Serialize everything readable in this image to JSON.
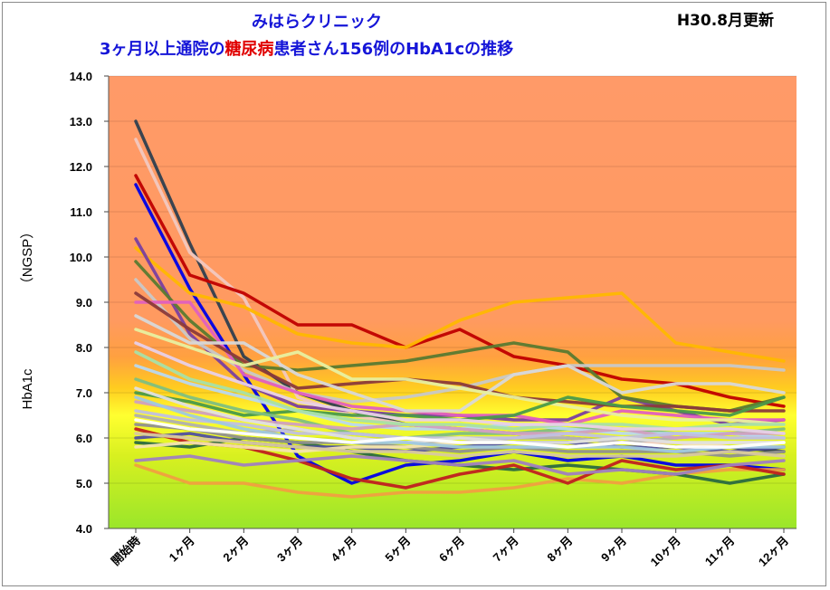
{
  "title": "みはらクリニック",
  "subtitle_parts": [
    "3ヶ月以上通院の",
    "糖尿病",
    "患者さん156例のHbA1cの推移"
  ],
  "update_label": "H30.8月更新",
  "colors": {
    "title": "#1515d8",
    "highlight": "#e00000"
  },
  "chart_data": {
    "type": "line",
    "title": "3ヶ月以上通院の糖尿病患者さん156例のHbA1cの推移",
    "ylabel": "HbA1c (NGSP)",
    "ylabel_parts": [
      "HbA1c",
      "（NGSP）"
    ],
    "ylim": [
      4.0,
      14.0
    ],
    "yticks": [
      "4.0",
      "5.0",
      "6.0",
      "7.0",
      "8.0",
      "9.0",
      "10.0",
      "11.0",
      "12.0",
      "13.0",
      "14.0"
    ],
    "categories": [
      "開始時",
      "1ヶ月",
      "2ヶ月",
      "3ヶ月",
      "4ヶ月",
      "5ヶ月",
      "6ヶ月",
      "7ヶ月",
      "8ヶ月",
      "9ヶ月",
      "10ヶ月",
      "11ヶ月",
      "12ヶ月"
    ],
    "background": "gradient: green (4.0) → yellow (6.5) → orange (8.0) → salmon (14.0)",
    "series": [
      {
        "color": "#2f3f4f",
        "values": [
          13.0,
          10.3,
          7.8,
          7.0,
          6.6,
          6.3,
          6.2,
          6.1,
          6.0,
          5.9,
          5.8,
          5.8,
          5.7
        ]
      },
      {
        "color": "#f2c8c0",
        "values": [
          12.6,
          10.1,
          9.1,
          6.9,
          6.5,
          6.3,
          6.2,
          6.1,
          6.0,
          5.9,
          5.9,
          5.8,
          5.8
        ]
      },
      {
        "color": "#c00000",
        "values": [
          11.8,
          9.6,
          9.2,
          8.5,
          8.5,
          8.0,
          8.4,
          7.8,
          7.6,
          7.3,
          7.2,
          6.9,
          6.7
        ]
      },
      {
        "color": "#0000e8",
        "values": [
          11.6,
          9.3,
          7.4,
          5.6,
          5.0,
          5.4,
          5.5,
          5.7,
          5.5,
          5.6,
          5.4,
          5.4,
          5.3
        ]
      },
      {
        "color": "#ffb800",
        "values": [
          10.2,
          9.2,
          8.9,
          8.3,
          8.1,
          8.0,
          8.6,
          9.0,
          9.1,
          9.2,
          8.1,
          7.9,
          7.7
        ]
      },
      {
        "color": "#7a3fa0",
        "values": [
          10.4,
          8.3,
          7.2,
          6.7,
          6.6,
          6.5,
          6.5,
          6.4,
          6.4,
          6.9,
          6.6,
          6.3,
          6.4
        ]
      },
      {
        "color": "#5a7a30",
        "values": [
          9.9,
          8.6,
          7.6,
          7.5,
          7.6,
          7.7,
          7.9,
          8.1,
          7.9,
          6.9,
          6.7,
          6.6,
          6.9
        ]
      },
      {
        "color": "#c8c8c8",
        "values": [
          9.5,
          8.2,
          7.5,
          7.0,
          6.8,
          6.9,
          7.1,
          7.4,
          7.6,
          7.6,
          7.6,
          7.6,
          7.5
        ]
      },
      {
        "color": "#e060c0",
        "values": [
          9.0,
          9.0,
          7.4,
          7.0,
          6.7,
          6.6,
          6.5,
          6.5,
          6.3,
          6.6,
          6.5,
          6.4,
          6.4
        ]
      },
      {
        "color": "#8b3a3a",
        "values": [
          9.2,
          8.4,
          7.7,
          7.1,
          7.2,
          7.3,
          7.2,
          6.9,
          6.8,
          6.7,
          6.7,
          6.6,
          6.6
        ]
      },
      {
        "color": "#d8d8d8",
        "values": [
          8.7,
          8.1,
          8.1,
          7.4,
          7.0,
          6.6,
          6.6,
          7.4,
          7.6,
          7.0,
          7.2,
          7.2,
          7.0
        ]
      },
      {
        "color": "#e8f0a0",
        "values": [
          8.4,
          8.0,
          7.6,
          7.9,
          7.3,
          7.3,
          7.1,
          6.9,
          6.7,
          6.5,
          6.4,
          6.4,
          6.3
        ]
      },
      {
        "color": "#f0a040",
        "values": [
          5.4,
          5.0,
          5.0,
          4.8,
          4.7,
          4.8,
          4.8,
          4.9,
          5.1,
          5.0,
          5.2,
          5.3,
          5.3
        ]
      },
      {
        "color": "#2a6a40",
        "values": [
          5.9,
          5.8,
          6.0,
          5.9,
          5.7,
          5.5,
          5.4,
          5.3,
          5.4,
          5.3,
          5.2,
          5.0,
          5.2
        ]
      },
      {
        "color": "#c02020",
        "values": [
          6.2,
          5.9,
          5.8,
          5.5,
          5.1,
          4.9,
          5.2,
          5.4,
          5.0,
          5.5,
          5.3,
          5.4,
          5.2
        ]
      },
      {
        "color": "#a080c0",
        "values": [
          5.5,
          5.6,
          5.4,
          5.5,
          5.6,
          5.5,
          5.4,
          5.5,
          5.2,
          5.3,
          5.2,
          5.4,
          5.5
        ]
      },
      {
        "color": "#4a9a4a",
        "values": [
          7.0,
          6.8,
          6.5,
          6.6,
          6.5,
          6.5,
          6.4,
          6.5,
          6.9,
          6.7,
          6.6,
          6.5,
          6.9
        ]
      },
      {
        "color": "#b0b0b0",
        "values": [
          6.5,
          6.3,
          6.1,
          6.2,
          6.0,
          5.9,
          5.9,
          6.0,
          6.0,
          5.9,
          6.0,
          6.1,
          6.0
        ]
      },
      {
        "color": "#7fbf7f",
        "values": [
          7.3,
          6.9,
          6.6,
          6.4,
          6.1,
          6.0,
          6.1,
          6.1,
          6.2,
          6.2,
          6.1,
          6.1,
          6.2
        ]
      },
      {
        "color": "#5050a0",
        "values": [
          6.0,
          6.1,
          5.9,
          5.8,
          5.8,
          5.7,
          5.8,
          5.9,
          5.9,
          5.8,
          5.8,
          5.7,
          5.8
        ]
      },
      {
        "color": "#b8d8f0",
        "values": [
          7.6,
          7.2,
          6.9,
          6.6,
          6.3,
          6.2,
          6.2,
          6.3,
          6.2,
          6.1,
          6.1,
          6.1,
          6.0
        ]
      },
      {
        "color": "#d0a0c0",
        "values": [
          6.8,
          6.6,
          6.4,
          6.3,
          6.2,
          6.3,
          6.2,
          6.1,
          6.1,
          6.2,
          6.0,
          6.1,
          6.1
        ]
      },
      {
        "color": "#909090",
        "values": [
          6.3,
          6.2,
          6.0,
          5.9,
          5.9,
          5.8,
          5.7,
          5.8,
          5.7,
          5.7,
          5.7,
          5.6,
          5.7
        ]
      },
      {
        "color": "#a8e0a8",
        "values": [
          7.9,
          7.3,
          7.0,
          6.6,
          6.4,
          6.3,
          6.3,
          6.2,
          6.3,
          6.3,
          6.2,
          6.3,
          6.3
        ]
      },
      {
        "color": "#e8d0e8",
        "values": [
          8.1,
          7.6,
          7.2,
          6.8,
          6.6,
          6.4,
          6.4,
          6.3,
          6.3,
          6.2,
          6.2,
          6.2,
          6.1
        ]
      },
      {
        "color": "#f4e4b0",
        "values": [
          5.8,
          5.9,
          5.8,
          5.7,
          5.8,
          5.8,
          5.9,
          5.9,
          5.8,
          5.9,
          5.8,
          5.9,
          5.9
        ]
      },
      {
        "color": "#c0c0e0",
        "values": [
          6.6,
          6.4,
          6.3,
          6.1,
          6.1,
          6.0,
          6.0,
          6.0,
          6.1,
          6.0,
          6.1,
          6.0,
          6.0
        ]
      },
      {
        "color": "#e0e0e0",
        "values": [
          7.1,
          6.7,
          6.4,
          6.2,
          6.0,
          5.9,
          6.0,
          5.9,
          5.9,
          6.0,
          5.9,
          5.9,
          5.9
        ]
      },
      {
        "color": "#d8c8a0",
        "values": [
          6.1,
          6.0,
          5.9,
          5.8,
          5.7,
          5.7,
          5.6,
          5.7,
          5.6,
          5.6,
          5.6,
          5.7,
          5.6
        ]
      },
      {
        "color": "#a0c8e0",
        "values": [
          6.9,
          6.5,
          6.2,
          6.0,
          5.9,
          5.9,
          5.8,
          5.8,
          5.8,
          5.8,
          5.7,
          5.8,
          5.8
        ]
      },
      {
        "color": "#ffffff",
        "values": [
          6.4,
          6.2,
          6.1,
          6.0,
          5.9,
          6.0,
          5.9,
          5.9,
          5.8,
          5.9,
          5.8,
          5.8,
          5.9
        ]
      }
    ]
  }
}
